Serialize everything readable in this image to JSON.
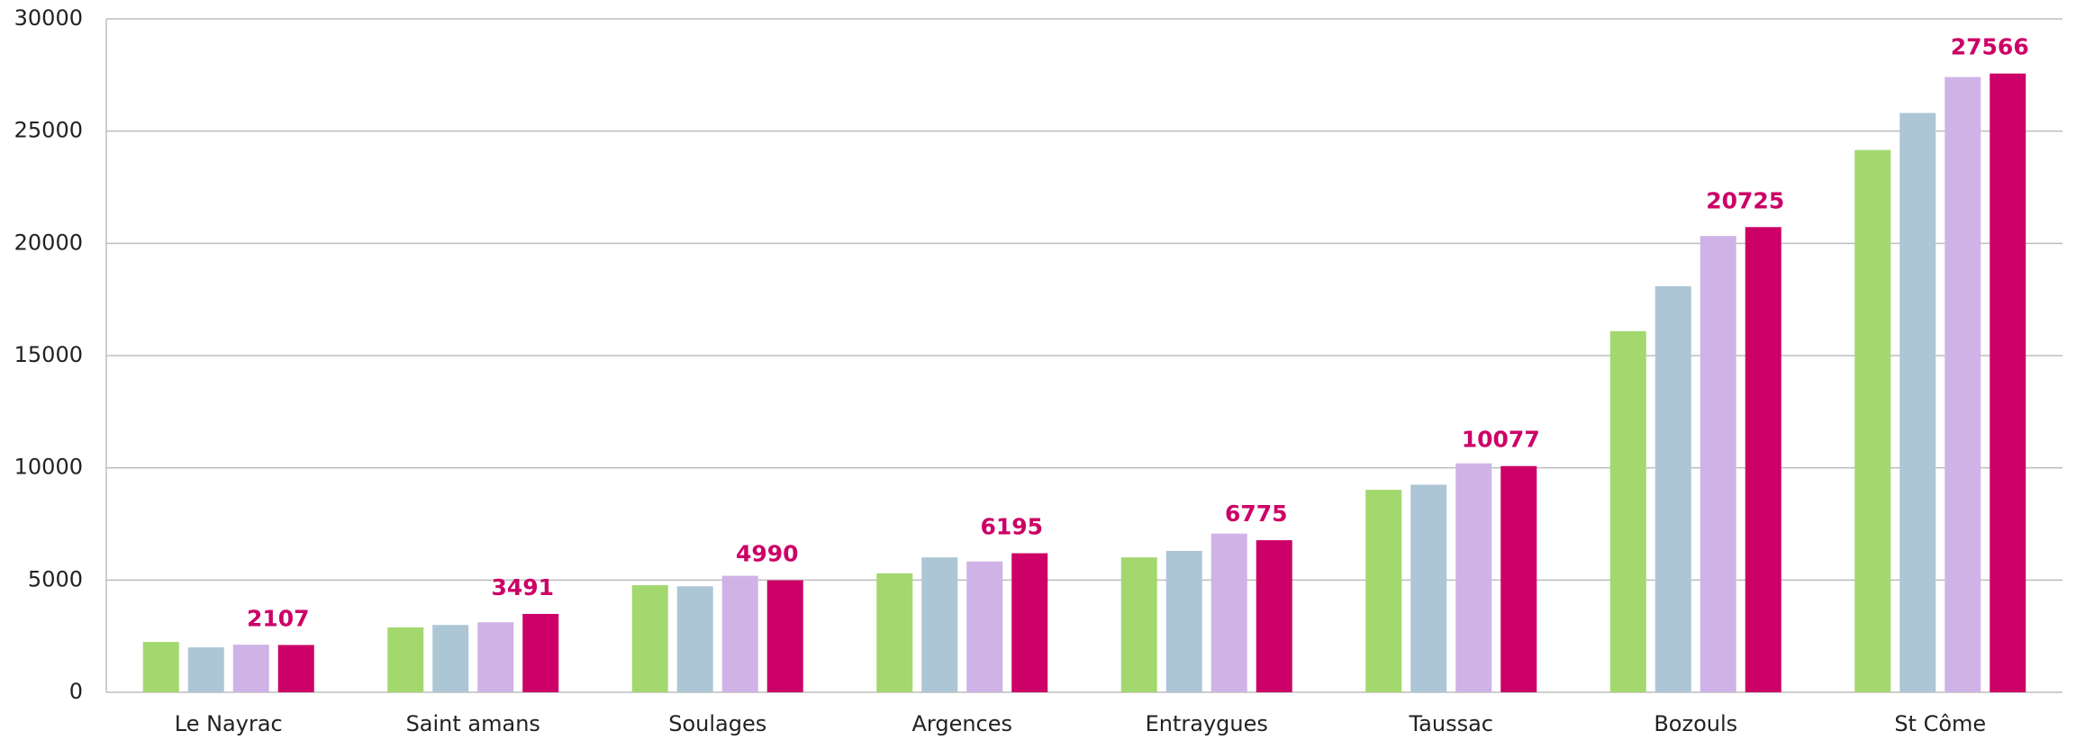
{
  "chart_data": {
    "type": "bar",
    "categories": [
      "Le Nayrac",
      "Saint amans",
      "Soulages",
      "Argences",
      "Entraygues",
      "Taussac",
      "Bozouls",
      "St Côme"
    ],
    "series": [
      {
        "color": "#a3d86e",
        "values": [
          2240,
          2890,
          4770,
          5300,
          6010,
          9020,
          16090,
          24160
        ]
      },
      {
        "color": "#adc6d6",
        "values": [
          2000,
          3000,
          4720,
          6010,
          6300,
          9250,
          18090,
          25810
        ]
      },
      {
        "color": "#d0b3e6",
        "values": [
          2120,
          3120,
          5190,
          5830,
          7070,
          10200,
          20330,
          27410
        ]
      },
      {
        "color": "#cc0066",
        "values": [
          2107,
          3491,
          4990,
          6195,
          6775,
          10077,
          20725,
          27566
        ],
        "data_labels": true
      }
    ],
    "ylim": [
      0,
      30000
    ],
    "yticks": [
      0,
      5000,
      10000,
      15000,
      20000,
      25000,
      30000
    ],
    "grid": true
  }
}
